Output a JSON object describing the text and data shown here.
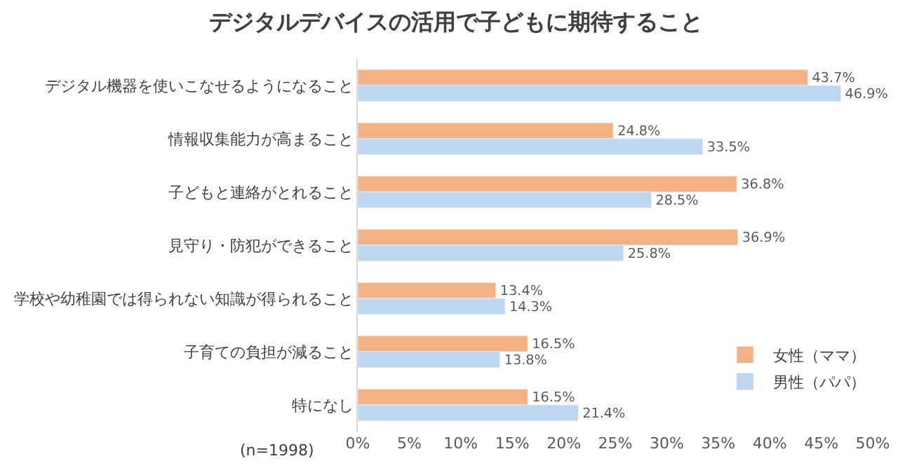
{
  "chart_data": {
    "type": "bar",
    "orientation": "horizontal",
    "title": "デジタルデバイスの活用で子どもに期待すること",
    "categories": [
      "デジタル機器を使いこなせるようになること",
      "情報収集能力が高まること",
      "子どもと連絡がとれること",
      "見守り・防犯ができること",
      "学校や幼稚園では得られない知識が得られること",
      "子育ての負担が減ること",
      "特になし"
    ],
    "series": [
      {
        "name": "女性（ママ）",
        "color": "#f4b183",
        "values": [
          43.7,
          24.8,
          36.8,
          36.9,
          13.4,
          16.5,
          16.5
        ],
        "value_labels": [
          "43.7%",
          "24.8%",
          "36.8%",
          "36.9%",
          "13.4%",
          "16.5%",
          "16.5%"
        ]
      },
      {
        "name": "男性（パパ）",
        "color": "#bdd7ee",
        "values": [
          46.9,
          33.5,
          28.5,
          25.8,
          14.3,
          13.8,
          21.4
        ],
        "value_labels": [
          "46.9%",
          "33.5%",
          "28.5%",
          "25.8%",
          "14.3%",
          "13.8%",
          "21.4%"
        ]
      }
    ],
    "xlim": [
      0,
      50
    ],
    "xticks": [
      {
        "value": 0,
        "label": "0%"
      },
      {
        "value": 5,
        "label": "5%"
      },
      {
        "value": 10,
        "label": "10%"
      },
      {
        "value": 15,
        "label": "15%"
      },
      {
        "value": 20,
        "label": "20%"
      },
      {
        "value": 25,
        "label": "25%"
      },
      {
        "value": 30,
        "label": "30%"
      },
      {
        "value": 35,
        "label": "35%"
      },
      {
        "value": 40,
        "label": "40%"
      },
      {
        "value": 45,
        "label": "45%"
      },
      {
        "value": 50,
        "label": "50%"
      }
    ],
    "annotations": [
      "(n=1998)"
    ],
    "legend": "bottom right",
    "grid": false
  }
}
